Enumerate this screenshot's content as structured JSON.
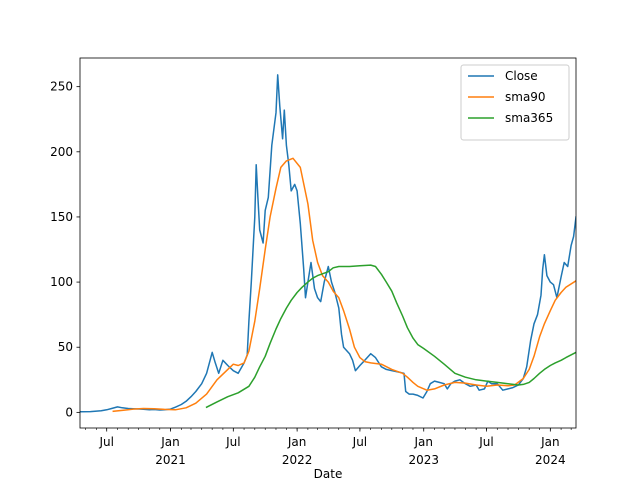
{
  "chart_data": {
    "type": "line",
    "xlabel": "Date",
    "ylabel": "",
    "xlim": [
      "2020-04-15",
      "2024-03-15"
    ],
    "ylim": [
      -12,
      272
    ],
    "yticks": [
      0,
      50,
      100,
      150,
      200,
      250
    ],
    "xticks": [
      {
        "date": "2020-07-01",
        "label": "Jul",
        "sub": ""
      },
      {
        "date": "2021-01-01",
        "label": "Jan",
        "sub": "2021"
      },
      {
        "date": "2021-07-01",
        "label": "Jul",
        "sub": ""
      },
      {
        "date": "2022-01-01",
        "label": "Jan",
        "sub": "2022"
      },
      {
        "date": "2022-07-01",
        "label": "Jul",
        "sub": ""
      },
      {
        "date": "2023-01-01",
        "label": "Jan",
        "sub": "2023"
      },
      {
        "date": "2023-07-01",
        "label": "Jul",
        "sub": ""
      },
      {
        "date": "2024-01-01",
        "label": "Jan",
        "sub": "2024"
      }
    ],
    "grid": false,
    "legend_position": "top-right",
    "series": [
      {
        "name": "Close",
        "color": "#1f77b4",
        "points": [
          [
            "2020-04-15",
            0.5
          ],
          [
            "2020-05-15",
            0.6
          ],
          [
            "2020-06-15",
            1.2
          ],
          [
            "2020-07-01",
            2.0
          ],
          [
            "2020-07-15",
            3.0
          ],
          [
            "2020-08-01",
            4.2
          ],
          [
            "2020-08-15",
            3.5
          ],
          [
            "2020-09-01",
            3.0
          ],
          [
            "2020-09-15",
            2.8
          ],
          [
            "2020-10-01",
            2.6
          ],
          [
            "2020-10-15",
            2.4
          ],
          [
            "2020-11-01",
            2.0
          ],
          [
            "2020-11-15",
            2.2
          ],
          [
            "2020-12-01",
            1.8
          ],
          [
            "2020-12-15",
            2.0
          ],
          [
            "2021-01-01",
            2.5
          ],
          [
            "2021-01-15",
            4.0
          ],
          [
            "2021-02-01",
            6.0
          ],
          [
            "2021-02-15",
            8.5
          ],
          [
            "2021-03-01",
            12.0
          ],
          [
            "2021-03-15",
            16.0
          ],
          [
            "2021-04-01",
            22.0
          ],
          [
            "2021-04-15",
            30.0
          ],
          [
            "2021-05-01",
            46.0
          ],
          [
            "2021-05-10",
            38.0
          ],
          [
            "2021-05-20",
            30.0
          ],
          [
            "2021-06-01",
            40.0
          ],
          [
            "2021-06-15",
            36.0
          ],
          [
            "2021-07-01",
            32.0
          ],
          [
            "2021-07-15",
            30.0
          ],
          [
            "2021-08-01",
            38.0
          ],
          [
            "2021-08-10",
            44.0
          ],
          [
            "2021-08-15",
            70.0
          ],
          [
            "2021-08-22",
            100.0
          ],
          [
            "2021-09-01",
            150.0
          ],
          [
            "2021-09-05",
            190.0
          ],
          [
            "2021-09-10",
            165.0
          ],
          [
            "2021-09-15",
            140.0
          ],
          [
            "2021-09-25",
            130.0
          ],
          [
            "2021-10-01",
            155.0
          ],
          [
            "2021-10-10",
            165.0
          ],
          [
            "2021-10-20",
            205.0
          ],
          [
            "2021-11-01",
            230.0
          ],
          [
            "2021-11-06",
            259.0
          ],
          [
            "2021-11-12",
            235.0
          ],
          [
            "2021-11-20",
            210.0
          ],
          [
            "2021-11-25",
            232.0
          ],
          [
            "2021-12-01",
            205.0
          ],
          [
            "2021-12-08",
            190.0
          ],
          [
            "2021-12-15",
            170.0
          ],
          [
            "2021-12-25",
            175.0
          ],
          [
            "2022-01-01",
            170.0
          ],
          [
            "2022-01-10",
            145.0
          ],
          [
            "2022-01-20",
            110.0
          ],
          [
            "2022-01-25",
            88.0
          ],
          [
            "2022-02-01",
            100.0
          ],
          [
            "2022-02-10",
            115.0
          ],
          [
            "2022-02-20",
            95.0
          ],
          [
            "2022-03-01",
            88.0
          ],
          [
            "2022-03-10",
            85.0
          ],
          [
            "2022-03-20",
            100.0
          ],
          [
            "2022-04-01",
            112.0
          ],
          [
            "2022-04-10",
            100.0
          ],
          [
            "2022-04-20",
            92.0
          ],
          [
            "2022-05-01",
            80.0
          ],
          [
            "2022-05-09",
            60.0
          ],
          [
            "2022-05-15",
            50.0
          ],
          [
            "2022-06-01",
            45.0
          ],
          [
            "2022-06-10",
            40.0
          ],
          [
            "2022-06-18",
            32.0
          ],
          [
            "2022-07-01",
            36.0
          ],
          [
            "2022-07-15",
            40.0
          ],
          [
            "2022-08-01",
            45.0
          ],
          [
            "2022-08-15",
            42.0
          ],
          [
            "2022-09-01",
            35.0
          ],
          [
            "2022-09-15",
            33.0
          ],
          [
            "2022-10-01",
            32.0
          ],
          [
            "2022-10-20",
            31.0
          ],
          [
            "2022-11-05",
            30.0
          ],
          [
            "2022-11-10",
            16.0
          ],
          [
            "2022-11-20",
            14.0
          ],
          [
            "2022-12-01",
            14.0
          ],
          [
            "2022-12-15",
            13.0
          ],
          [
            "2022-12-30",
            11.0
          ],
          [
            "2023-01-10",
            16.0
          ],
          [
            "2023-01-20",
            22.0
          ],
          [
            "2023-02-01",
            24.0
          ],
          [
            "2023-02-15",
            23.0
          ],
          [
            "2023-03-01",
            22.0
          ],
          [
            "2023-03-10",
            18.0
          ],
          [
            "2023-03-20",
            22.0
          ],
          [
            "2023-04-01",
            24.0
          ],
          [
            "2023-04-15",
            25.0
          ],
          [
            "2023-05-01",
            22.0
          ],
          [
            "2023-05-15",
            20.0
          ],
          [
            "2023-06-01",
            21.0
          ],
          [
            "2023-06-10",
            17.0
          ],
          [
            "2023-06-25",
            18.0
          ],
          [
            "2023-07-05",
            24.0
          ],
          [
            "2023-07-15",
            22.0
          ],
          [
            "2023-08-01",
            22.0
          ],
          [
            "2023-08-17",
            17.0
          ],
          [
            "2023-09-01",
            18.0
          ],
          [
            "2023-09-15",
            19.0
          ],
          [
            "2023-10-01",
            21.0
          ],
          [
            "2023-10-15",
            26.0
          ],
          [
            "2023-10-25",
            35.0
          ],
          [
            "2023-11-05",
            55.0
          ],
          [
            "2023-11-15",
            68.0
          ],
          [
            "2023-11-25",
            75.0
          ],
          [
            "2023-12-05",
            90.0
          ],
          [
            "2023-12-10",
            110.0
          ],
          [
            "2023-12-15",
            121.0
          ],
          [
            "2023-12-22",
            105.0
          ],
          [
            "2024-01-01",
            100.0
          ],
          [
            "2024-01-10",
            98.0
          ],
          [
            "2024-01-20",
            88.0
          ],
          [
            "2024-02-01",
            104.0
          ],
          [
            "2024-02-10",
            115.0
          ],
          [
            "2024-02-20",
            112.0
          ],
          [
            "2024-03-01",
            128.0
          ],
          [
            "2024-03-08",
            135.0
          ],
          [
            "2024-03-15",
            150.0
          ]
        ]
      },
      {
        "name": "sma90",
        "color": "#ff7f0e",
        "points": [
          [
            "2020-07-20",
            0.8
          ],
          [
            "2020-08-15",
            1.5
          ],
          [
            "2020-09-15",
            2.5
          ],
          [
            "2020-10-15",
            3.0
          ],
          [
            "2020-11-15",
            2.8
          ],
          [
            "2020-12-15",
            2.3
          ],
          [
            "2021-01-15",
            2.0
          ],
          [
            "2021-02-15",
            3.5
          ],
          [
            "2021-03-15",
            7.0
          ],
          [
            "2021-04-15",
            14.0
          ],
          [
            "2021-05-15",
            25.0
          ],
          [
            "2021-06-15",
            33.0
          ],
          [
            "2021-07-01",
            37.0
          ],
          [
            "2021-07-15",
            36.0
          ],
          [
            "2021-08-01",
            38.0
          ],
          [
            "2021-08-15",
            47.0
          ],
          [
            "2021-09-01",
            70.0
          ],
          [
            "2021-09-15",
            95.0
          ],
          [
            "2021-10-01",
            125.0
          ],
          [
            "2021-10-15",
            150.0
          ],
          [
            "2021-11-01",
            172.0
          ],
          [
            "2021-11-15",
            188.0
          ],
          [
            "2021-12-01",
            193.0
          ],
          [
            "2021-12-20",
            195.0
          ],
          [
            "2022-01-10",
            188.0
          ],
          [
            "2022-02-01",
            160.0
          ],
          [
            "2022-02-15",
            132.0
          ],
          [
            "2022-03-01",
            115.0
          ],
          [
            "2022-03-15",
            105.0
          ],
          [
            "2022-04-01",
            100.0
          ],
          [
            "2022-04-15",
            93.0
          ],
          [
            "2022-05-01",
            88.0
          ],
          [
            "2022-05-15",
            78.0
          ],
          [
            "2022-06-01",
            64.0
          ],
          [
            "2022-06-15",
            50.0
          ],
          [
            "2022-07-01",
            42.0
          ],
          [
            "2022-07-15",
            39.0
          ],
          [
            "2022-08-01",
            38.0
          ],
          [
            "2022-09-01",
            37.0
          ],
          [
            "2022-10-01",
            33.0
          ],
          [
            "2022-11-01",
            30.0
          ],
          [
            "2022-11-15",
            27.0
          ],
          [
            "2022-12-01",
            23.0
          ],
          [
            "2022-12-15",
            20.0
          ],
          [
            "2023-01-10",
            17.0
          ],
          [
            "2023-02-01",
            18.0
          ],
          [
            "2023-03-01",
            21.0
          ],
          [
            "2023-04-01",
            23.0
          ],
          [
            "2023-05-01",
            22.5
          ],
          [
            "2023-06-01",
            21.0
          ],
          [
            "2023-07-01",
            20.0
          ],
          [
            "2023-08-01",
            21.0
          ],
          [
            "2023-09-01",
            20.5
          ],
          [
            "2023-09-20",
            21.0
          ],
          [
            "2023-10-15",
            26.0
          ],
          [
            "2023-11-01",
            33.0
          ],
          [
            "2023-11-15",
            43.0
          ],
          [
            "2023-12-01",
            58.0
          ],
          [
            "2023-12-15",
            68.0
          ],
          [
            "2024-01-01",
            78.0
          ],
          [
            "2024-01-15",
            86.0
          ],
          [
            "2024-02-01",
            92.0
          ],
          [
            "2024-02-15",
            96.0
          ],
          [
            "2024-03-15",
            101.0
          ]
        ]
      },
      {
        "name": "sma365",
        "color": "#2ca02c",
        "points": [
          [
            "2021-04-15",
            4.0
          ],
          [
            "2021-05-15",
            8.0
          ],
          [
            "2021-06-15",
            12.0
          ],
          [
            "2021-07-15",
            15.0
          ],
          [
            "2021-08-15",
            20.0
          ],
          [
            "2021-09-01",
            27.0
          ],
          [
            "2021-09-15",
            35.0
          ],
          [
            "2021-10-01",
            43.0
          ],
          [
            "2021-10-15",
            53.0
          ],
          [
            "2021-11-01",
            64.0
          ],
          [
            "2021-11-15",
            72.0
          ],
          [
            "2021-12-01",
            80.0
          ],
          [
            "2021-12-15",
            86.0
          ],
          [
            "2022-01-01",
            92.0
          ],
          [
            "2022-01-15",
            96.0
          ],
          [
            "2022-02-01",
            100.0
          ],
          [
            "2022-02-15",
            103.0
          ],
          [
            "2022-03-01",
            105.0
          ],
          [
            "2022-04-01",
            108.0
          ],
          [
            "2022-04-15",
            111.0
          ],
          [
            "2022-05-01",
            112.0
          ],
          [
            "2022-06-01",
            112.0
          ],
          [
            "2022-07-01",
            112.5
          ],
          [
            "2022-08-01",
            113.0
          ],
          [
            "2022-08-15",
            112.0
          ],
          [
            "2022-09-01",
            106.0
          ],
          [
            "2022-09-15",
            100.0
          ],
          [
            "2022-10-01",
            93.0
          ],
          [
            "2022-10-15",
            84.0
          ],
          [
            "2022-11-01",
            74.0
          ],
          [
            "2022-11-15",
            65.0
          ],
          [
            "2022-12-01",
            57.0
          ],
          [
            "2022-12-15",
            52.0
          ],
          [
            "2023-01-01",
            49.0
          ],
          [
            "2023-02-01",
            43.0
          ],
          [
            "2023-03-01",
            37.0
          ],
          [
            "2023-04-01",
            30.0
          ],
          [
            "2023-05-01",
            27.0
          ],
          [
            "2023-06-01",
            25.0
          ],
          [
            "2023-07-01",
            24.0
          ],
          [
            "2023-08-01",
            23.0
          ],
          [
            "2023-09-01",
            22.0
          ],
          [
            "2023-10-01",
            21.0
          ],
          [
            "2023-10-15",
            21.5
          ],
          [
            "2023-11-01",
            23.0
          ],
          [
            "2023-11-15",
            26.0
          ],
          [
            "2023-12-01",
            30.0
          ],
          [
            "2023-12-15",
            33.0
          ],
          [
            "2024-01-01",
            36.0
          ],
          [
            "2024-01-15",
            38.0
          ],
          [
            "2024-02-01",
            40.0
          ],
          [
            "2024-02-15",
            42.0
          ],
          [
            "2024-03-15",
            46.0
          ]
        ]
      }
    ]
  }
}
